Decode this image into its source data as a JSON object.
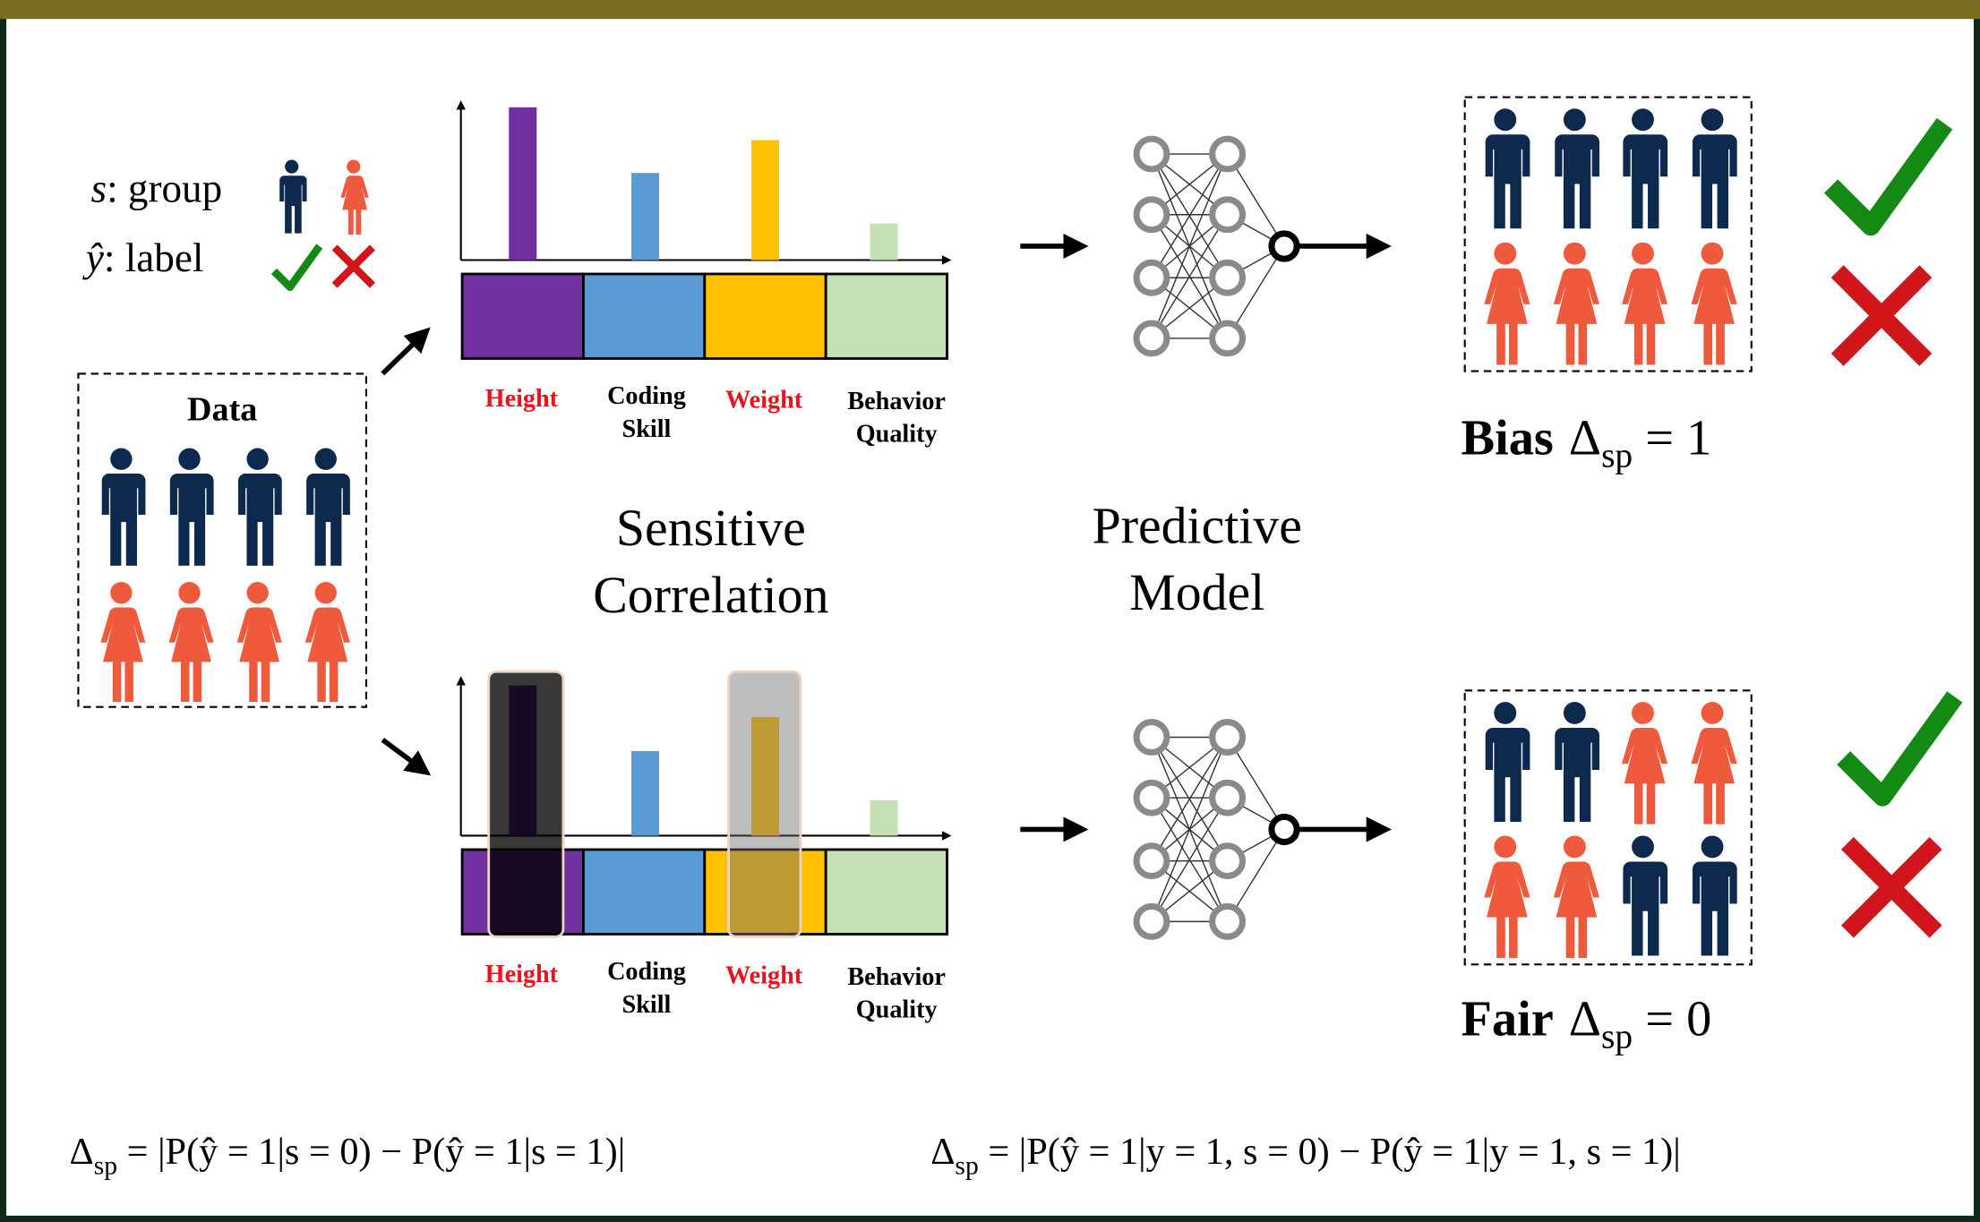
{
  "legend": {
    "group": {
      "symbol": "s",
      "text": ": group"
    },
    "label": {
      "symbol": "ŷ",
      "text": ": label"
    }
  },
  "data_box": {
    "title": "Data"
  },
  "features": {
    "top": [
      [
        "Height"
      ],
      [
        "Coding",
        "Skill"
      ],
      [
        "Weight"
      ],
      [
        "Behavior",
        "Quality"
      ]
    ],
    "bottom": [
      [
        "Height"
      ],
      [
        "Coding",
        "Skill"
      ],
      [
        "Weight"
      ],
      [
        "Behavior",
        "Quality"
      ]
    ]
  },
  "stages": {
    "correlation": [
      "Sensitive",
      "Correlation"
    ],
    "model": [
      "Predictive",
      "Model"
    ]
  },
  "outcomes": {
    "top": {
      "label": "Bias",
      "symbol": "Δ",
      "subscript": "sp",
      "rest": " = 1"
    },
    "bottom": {
      "label": "Fair",
      "symbol": "Δ",
      "subscript": "sp",
      "rest": " = 0"
    }
  },
  "formulas": [
    {
      "symbol": "Δ",
      "subscript": "sp",
      "rest": " = |P(ŷ = 1|s = 0) − P(ŷ = 1|s = 1)|"
    },
    {
      "symbol": "Δ",
      "subscript": "sp",
      "rest": " = |P(ŷ = 1|y = 1, s = 0) − P(ŷ = 1|y = 1, s = 1)|"
    }
  ]
}
